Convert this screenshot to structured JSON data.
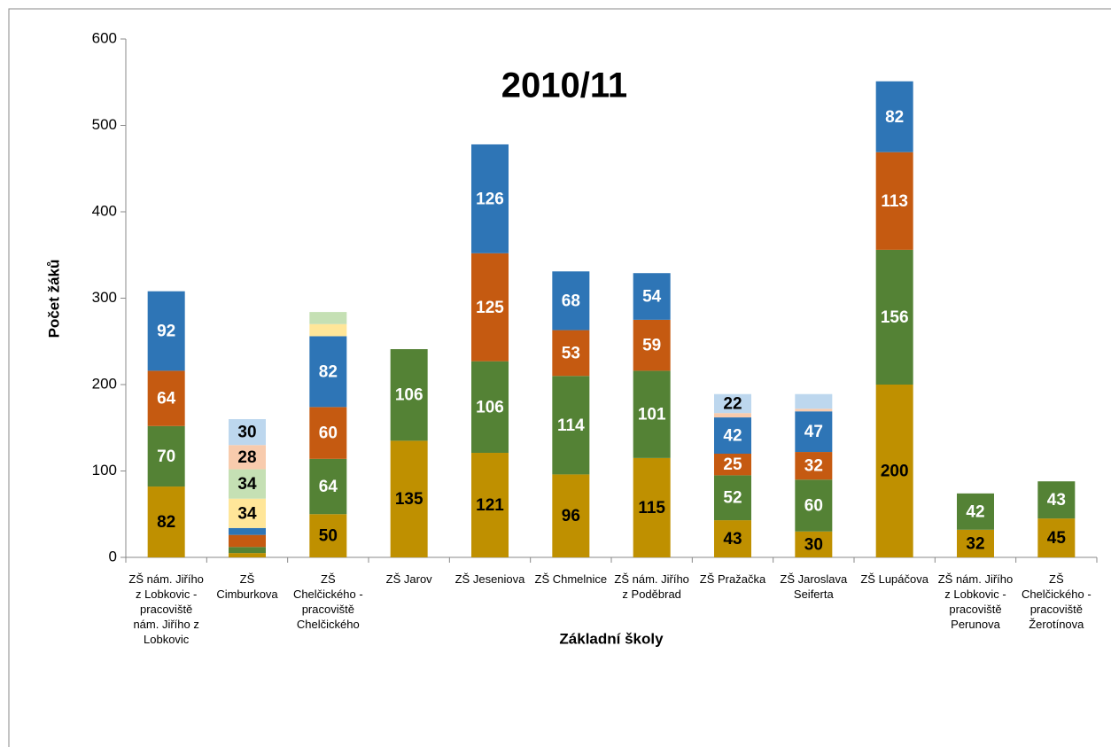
{
  "chart_data": {
    "type": "stacked_bar",
    "title": "2010/11",
    "y_label": "Počet žáků",
    "x_label": "Základní školy",
    "categories": [
      "ZŠ nám. Jiřího z Lobkovic - pracoviště nám. Jiřího z Lobkovic",
      "ZŠ Cimburkova",
      "ZŠ Chelčického - pracoviště Chelčického",
      "ZŠ Jarov",
      "ZŠ Jeseniova",
      "ZŠ Chmelnice",
      "ZŠ nám. Jiřího z Poděbrad",
      "ZŠ Pražačka",
      "ZŠ Jaroslava Seiferta",
      "ZŠ Lupáčova",
      "ZŠ nám. Jiřího z Lobkovic - pracoviště Perunova",
      "ZŠ Chelčického - pracoviště Žerotínova"
    ],
    "series": [
      {
        "color": "#bf9000",
        "label_color": "#000000",
        "values": [
          82,
          5,
          50,
          135,
          121,
          96,
          115,
          43,
          30,
          200,
          32,
          45
        ]
      },
      {
        "color": "#548235",
        "label_color": "#ffffff",
        "values": [
          70,
          7,
          64,
          106,
          106,
          114,
          101,
          52,
          60,
          156,
          42,
          43
        ]
      },
      {
        "color": "#c55a11",
        "label_color": "#ffffff",
        "values": [
          64,
          14,
          60,
          null,
          125,
          53,
          59,
          25,
          32,
          113,
          null,
          null
        ]
      },
      {
        "color": "#2e75b6",
        "label_color": "#ffffff",
        "values": [
          92,
          8,
          82,
          null,
          126,
          68,
          54,
          42,
          47,
          82,
          null,
          null
        ]
      },
      {
        "color": "#ffe699",
        "label_color": "#000000",
        "values": [
          null,
          34,
          14,
          null,
          null,
          null,
          null,
          null,
          null,
          null,
          null,
          null
        ]
      },
      {
        "color": "#c5e0b4",
        "label_color": "#000000",
        "values": [
          null,
          34,
          14,
          null,
          null,
          null,
          null,
          null,
          null,
          null,
          null,
          null
        ]
      },
      {
        "color": "#f8cbad",
        "label_color": "#000000",
        "values": [
          null,
          28,
          null,
          null,
          null,
          null,
          null,
          5,
          3,
          null,
          null,
          null
        ]
      },
      {
        "color": "#bdd7ee",
        "label_color": "#000000",
        "values": [
          null,
          30,
          null,
          null,
          null,
          null,
          null,
          22,
          17,
          null,
          null,
          null
        ]
      }
    ],
    "ylim": [
      0,
      600
    ],
    "yticks": [
      0,
      100,
      200,
      300,
      400,
      500,
      600
    ],
    "grid": false
  }
}
